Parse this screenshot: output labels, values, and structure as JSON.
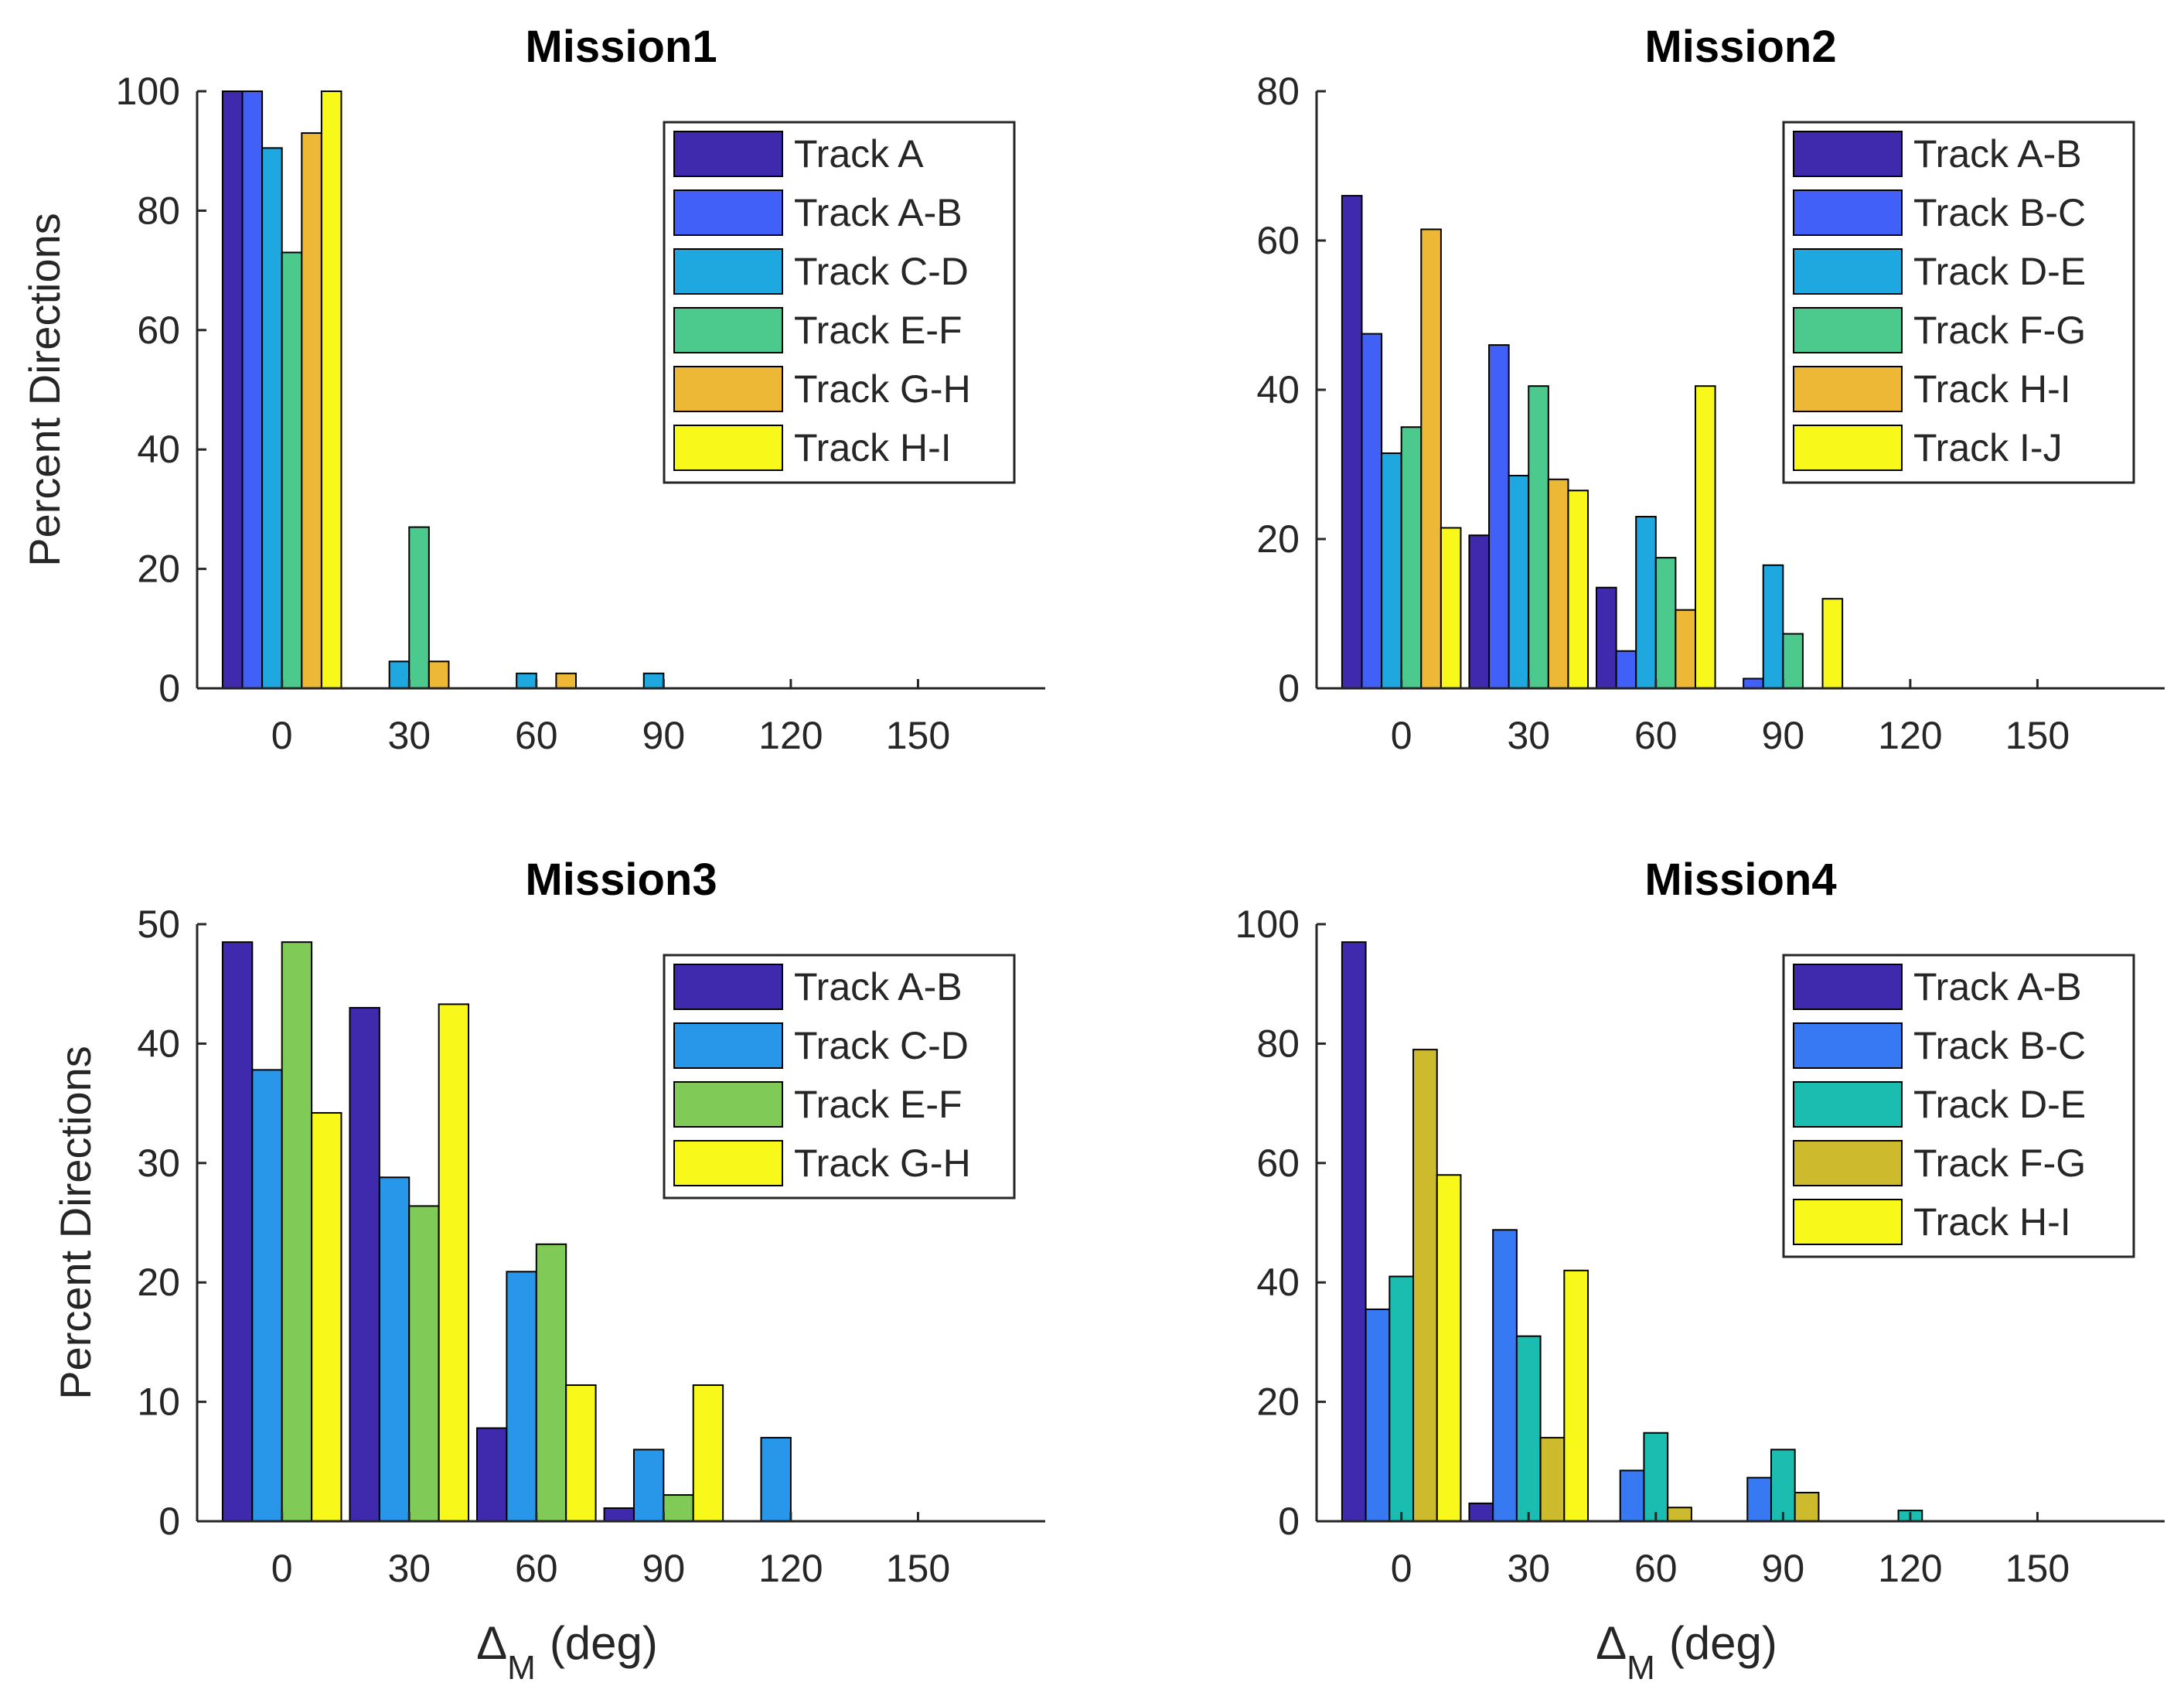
{
  "chart_data": [
    {
      "type": "bar",
      "title": "Mission1",
      "ylabel": "Percent Directions",
      "xlabel": "",
      "xlabel_sub": "",
      "xlabel_unit": "",
      "ylim": [
        0,
        100
      ],
      "yticks": [
        0,
        20,
        40,
        60,
        80,
        100
      ],
      "xlim": [
        -20,
        180
      ],
      "xticks": [
        0,
        30,
        60,
        90,
        120,
        150
      ],
      "legend_position": "top-right",
      "series": [
        {
          "name": "Track A",
          "color": "#3F2AAE",
          "values": [
            100,
            0,
            0,
            0,
            0,
            0
          ]
        },
        {
          "name": "Track A-B",
          "color": "#4060F8",
          "values": [
            100,
            0,
            0,
            0,
            0,
            0
          ]
        },
        {
          "name": "Track C-D",
          "color": "#1FA8DF",
          "values": [
            90.5,
            4.5,
            2.5,
            2.5,
            0,
            0
          ]
        },
        {
          "name": "Track E-F",
          "color": "#4CC98C",
          "values": [
            73,
            27,
            0,
            0,
            0,
            0
          ]
        },
        {
          "name": "Track G-H",
          "color": "#EDB835",
          "values": [
            93,
            4.5,
            2.5,
            0,
            0,
            0
          ]
        },
        {
          "name": "Track H-I",
          "color": "#F8F81A",
          "values": [
            100,
            0,
            0,
            0,
            0,
            0
          ]
        }
      ]
    },
    {
      "type": "bar",
      "title": "Mission2",
      "ylabel": "",
      "xlabel": "",
      "xlabel_sub": "",
      "xlabel_unit": "",
      "ylim": [
        0,
        80
      ],
      "yticks": [
        0,
        20,
        40,
        60,
        80
      ],
      "xlim": [
        -20,
        180
      ],
      "xticks": [
        0,
        30,
        60,
        90,
        120,
        150
      ],
      "legend_position": "top-right",
      "series": [
        {
          "name": "Track A-B",
          "color": "#3F2AAE",
          "values": [
            66,
            20.5,
            13.5,
            0,
            0,
            0
          ]
        },
        {
          "name": "Track B-C",
          "color": "#4060F8",
          "values": [
            47.5,
            46,
            5,
            1.3,
            0,
            0
          ]
        },
        {
          "name": "Track D-E",
          "color": "#1FA8DF",
          "values": [
            31.5,
            28.5,
            23,
            16.5,
            0,
            0
          ]
        },
        {
          "name": "Track F-G",
          "color": "#4CC98C",
          "values": [
            35,
            40.5,
            17.5,
            7.3,
            0,
            0
          ]
        },
        {
          "name": "Track H-I",
          "color": "#EDB835",
          "values": [
            61.5,
            28,
            10.5,
            0,
            0,
            0
          ]
        },
        {
          "name": "Track I-J",
          "color": "#F8F81A",
          "values": [
            21.5,
            26.5,
            40.5,
            12,
            0,
            0
          ]
        }
      ]
    },
    {
      "type": "bar",
      "title": "Mission3",
      "ylabel": "Percent Directions",
      "xlabel": "Δ",
      "xlabel_sub": "M",
      "xlabel_unit": "(deg)",
      "ylim": [
        0,
        50
      ],
      "yticks": [
        0,
        10,
        20,
        30,
        40,
        50
      ],
      "xlim": [
        -20,
        180
      ],
      "xticks": [
        0,
        30,
        60,
        90,
        120,
        150
      ],
      "legend_position": "top-right",
      "series": [
        {
          "name": "Track A-B",
          "color": "#3F2AAE",
          "values": [
            48.5,
            43,
            7.8,
            1.1,
            0,
            0
          ]
        },
        {
          "name": "Track C-D",
          "color": "#2897EA",
          "values": [
            37.8,
            28.8,
            20.9,
            6,
            7,
            0
          ]
        },
        {
          "name": "Track E-F",
          "color": "#80CA57",
          "values": [
            48.5,
            26.4,
            23.2,
            2.2,
            0,
            0
          ]
        },
        {
          "name": "Track G-H",
          "color": "#F8F81A",
          "values": [
            34.2,
            43.3,
            11.4,
            11.4,
            0,
            0
          ]
        }
      ]
    },
    {
      "type": "bar",
      "title": "Mission4",
      "ylabel": "",
      "xlabel": "Δ",
      "xlabel_sub": "M",
      "xlabel_unit": "(deg)",
      "ylim": [
        0,
        100
      ],
      "yticks": [
        0,
        20,
        40,
        60,
        80,
        100
      ],
      "xlim": [
        -20,
        180
      ],
      "xticks": [
        0,
        30,
        60,
        90,
        120,
        150
      ],
      "legend_position": "top-right",
      "series": [
        {
          "name": "Track A-B",
          "color": "#3F2AAE",
          "values": [
            97,
            3,
            0,
            0,
            0,
            0
          ]
        },
        {
          "name": "Track B-C",
          "color": "#3779F2",
          "values": [
            35.5,
            48.8,
            8.5,
            7.3,
            0,
            0
          ]
        },
        {
          "name": "Track D-E",
          "color": "#1BBDB0",
          "values": [
            41,
            31,
            14.8,
            12,
            1.8,
            0
          ]
        },
        {
          "name": "Track F-G",
          "color": "#CDBB2D",
          "values": [
            79,
            14,
            2.3,
            4.8,
            0,
            0
          ]
        },
        {
          "name": "Track H-I",
          "color": "#F8F81A",
          "values": [
            58,
            42,
            0,
            0,
            0,
            0
          ]
        }
      ]
    }
  ]
}
